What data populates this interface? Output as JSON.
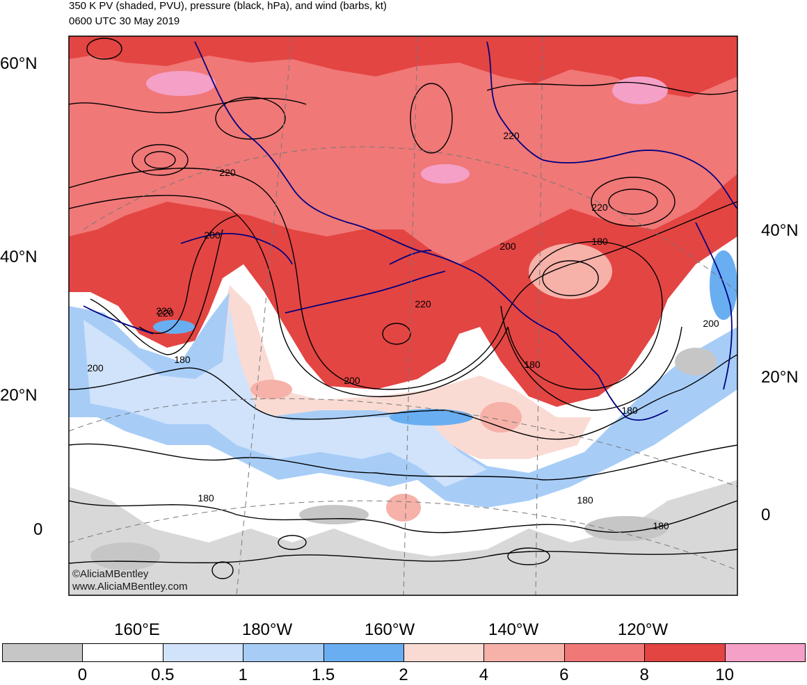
{
  "title_line1": "350 K PV (shaded, PVU), pressure (black, hPa), and wind (barbs, kt)",
  "title_line2": "0600 UTC 30 May 2019",
  "lat_labels_left": [
    "60°N",
    "40°N",
    "20°N",
    "0"
  ],
  "lat_labels_right": [
    "40°N",
    "20°N",
    "0"
  ],
  "lon_labels": [
    "160°E",
    "180°W",
    "160°W",
    "140°W",
    "120°W"
  ],
  "contour_labels": [
    "220",
    "200",
    "220",
    "220",
    "200",
    "180",
    "200",
    "180",
    "220",
    "220",
    "220",
    "200",
    "180",
    "200",
    "180",
    "180",
    "180",
    "180"
  ],
  "credit_line1": "©AliciaMBentley",
  "credit_line2": "www.AliciaMBentley.com",
  "colorbar": {
    "labels": [
      "0",
      "0.5",
      "1",
      "1.5",
      "2",
      "4",
      "6",
      "8",
      "10"
    ],
    "colors": [
      "#c6c6c6",
      "#ffffff",
      "#d0e3fb",
      "#a7cdf7",
      "#6aaef2",
      "#fadbd3",
      "#f6b1a9",
      "#f07877",
      "#e34543",
      "#f5a0c6"
    ]
  },
  "coastline_color": "#00007f",
  "contour_color": "#000000"
}
